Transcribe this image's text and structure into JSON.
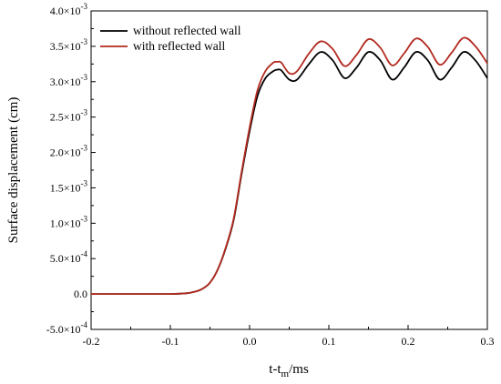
{
  "chart_data": {
    "type": "line",
    "xlabel": {
      "main": "t-t",
      "sub": "m",
      "tail": "/ms"
    },
    "ylabel": "Surface displacement (cm)",
    "xlim": [
      -0.2,
      0.3
    ],
    "ylim": [
      -0.0005,
      0.004
    ],
    "grid": false,
    "legend_position": "top-left",
    "x_ticks": [
      -0.2,
      -0.1,
      0.0,
      0.1,
      0.2,
      0.3
    ],
    "x_tick_labels": [
      "-0.2",
      "-0.1",
      "0.0",
      "0.1",
      "0.2",
      "0.3"
    ],
    "y_ticks": [
      -0.0005,
      0.0,
      0.0005,
      0.001,
      0.0015,
      0.002,
      0.0025,
      0.003,
      0.0035,
      0.004
    ],
    "y_tick_labels": [
      {
        "mant": "-5.0",
        "exp": "-4"
      },
      {
        "mant": "0.0",
        "exp": null
      },
      {
        "mant": "5.0",
        "exp": "-4"
      },
      {
        "mant": "1.0",
        "exp": "-3"
      },
      {
        "mant": "1.5",
        "exp": "-3"
      },
      {
        "mant": "2.0",
        "exp": "-3"
      },
      {
        "mant": "2.5",
        "exp": "-3"
      },
      {
        "mant": "3.0",
        "exp": "-3"
      },
      {
        "mant": "3.5",
        "exp": "-3"
      },
      {
        "mant": "4.0",
        "exp": "-3"
      }
    ],
    "series": [
      {
        "name": "without reflected wall",
        "color": "#000000",
        "x": [
          -0.2,
          -0.15,
          -0.1,
          -0.08,
          -0.07,
          -0.06,
          -0.05,
          -0.04,
          -0.03,
          -0.02,
          -0.01,
          0.0,
          0.01,
          0.02,
          0.03,
          0.035,
          0.04,
          0.05,
          0.06,
          0.075,
          0.09,
          0.105,
          0.12,
          0.135,
          0.15,
          0.165,
          0.18,
          0.195,
          0.21,
          0.225,
          0.24,
          0.255,
          0.27,
          0.285,
          0.3
        ],
        "y": [
          0.0,
          0.0,
          0.0,
          1e-05,
          3e-05,
          7e-05,
          0.00016,
          0.00035,
          0.00065,
          0.00105,
          0.0017,
          0.0023,
          0.0028,
          0.00305,
          0.00315,
          0.00317,
          0.00316,
          0.00303,
          0.00303,
          0.00325,
          0.00342,
          0.0033,
          0.00305,
          0.0032,
          0.00342,
          0.0033,
          0.00303,
          0.0032,
          0.00342,
          0.0033,
          0.00303,
          0.0032,
          0.00342,
          0.0033,
          0.00305
        ]
      },
      {
        "name": "with reflected wall",
        "color": "#b22a1f",
        "x": [
          -0.2,
          -0.15,
          -0.1,
          -0.08,
          -0.07,
          -0.06,
          -0.05,
          -0.04,
          -0.03,
          -0.02,
          -0.01,
          0.0,
          0.01,
          0.02,
          0.03,
          0.035,
          0.04,
          0.05,
          0.06,
          0.075,
          0.09,
          0.105,
          0.12,
          0.135,
          0.15,
          0.165,
          0.18,
          0.195,
          0.21,
          0.225,
          0.24,
          0.255,
          0.27,
          0.285,
          0.3
        ],
        "y": [
          0.0,
          0.0,
          0.0,
          1e-05,
          3e-05,
          7e-05,
          0.00016,
          0.00035,
          0.00066,
          0.00107,
          0.00173,
          0.00235,
          0.00288,
          0.00315,
          0.00327,
          0.00328,
          0.00327,
          0.00312,
          0.00315,
          0.0034,
          0.00357,
          0.00346,
          0.00322,
          0.00338,
          0.0036,
          0.00348,
          0.00323,
          0.0034,
          0.00361,
          0.00349,
          0.00324,
          0.00341,
          0.00362,
          0.0035,
          0.00326
        ]
      }
    ]
  }
}
